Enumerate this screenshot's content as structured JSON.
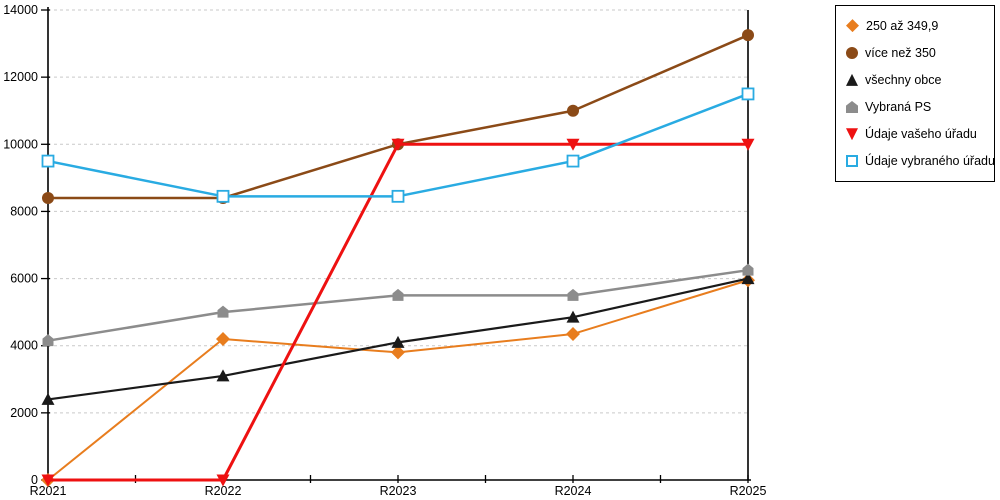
{
  "chart_data": {
    "type": "line",
    "title": "",
    "xlabel": "",
    "ylabel": "",
    "ylim": [
      0,
      14000
    ],
    "y_tick_step": 2000,
    "y_tick_labels": [
      "0",
      "2000",
      "4000",
      "6000",
      "8000",
      "10000",
      "12000",
      "14000"
    ],
    "grid": "horizontal-dashed",
    "legend_position": "top-right-outside",
    "categories": [
      "R2021",
      "R2022",
      "R2023",
      "R2024",
      "R2025"
    ],
    "series": [
      {
        "name": "250 až 349,9",
        "marker": "diamond",
        "color": "#E87D1E",
        "line_width": 2,
        "values": [
          0,
          4200,
          3800,
          4350,
          5950
        ]
      },
      {
        "name": "více než 350",
        "marker": "circle",
        "color": "#8B4A17",
        "line_width": 2.5,
        "values": [
          8400,
          8400,
          10000,
          11000,
          13250
        ]
      },
      {
        "name": "všechny obce",
        "marker": "triangle-up",
        "color": "#1A1A1A",
        "line_width": 2.2,
        "values": [
          2400,
          3100,
          4100,
          4850,
          6000
        ]
      },
      {
        "name": "Vybraná PS",
        "marker": "pentagon",
        "color": "#8C8C8C",
        "line_width": 2.5,
        "values": [
          4150,
          5000,
          5500,
          5500,
          6250
        ]
      },
      {
        "name": "Údaje vašeho úřadu",
        "marker": "triangle-down",
        "color": "#EE1111",
        "line_width": 3,
        "values": [
          0,
          0,
          10000,
          10000,
          10000
        ]
      },
      {
        "name": "Údaje vybraného úřadu",
        "marker": "square-open",
        "color": "#29ABE2",
        "line_width": 2.5,
        "values": [
          9500,
          8450,
          8450,
          9500,
          11500
        ]
      }
    ],
    "colors": {
      "axis": "#000000",
      "gridline": "#C9C9C9",
      "text": "#000000",
      "background": "#FFFFFF"
    }
  }
}
